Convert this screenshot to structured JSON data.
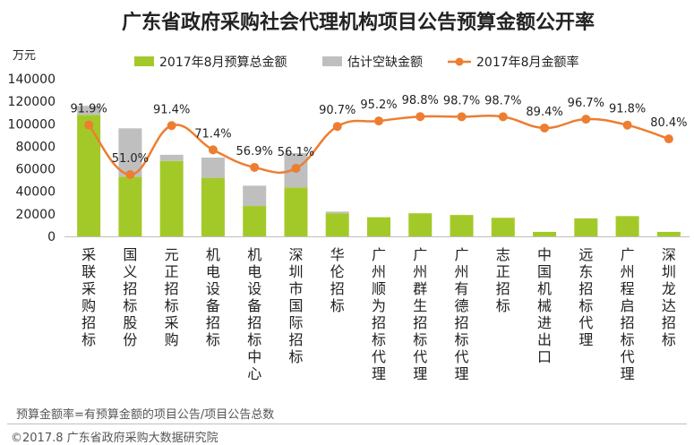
{
  "chart_data": {
    "type": "bar",
    "title": "广东省政府采购社会代理机构项目公告预算金额公开率",
    "ylabel": "万元",
    "ylim": [
      0,
      140000
    ],
    "yticks": [
      0,
      20000,
      40000,
      60000,
      80000,
      100000,
      120000,
      140000
    ],
    "y2lim": [
      0,
      1.3
    ],
    "legend_position": "top",
    "categories": [
      "采联采购招标",
      "国义招标股份",
      "元正招标采购",
      "机电设备招标",
      "机电设备招标中心",
      "深圳市国际招标",
      "华伦招标",
      "广州顺为招标代理",
      "广州群生招标代理",
      "广州有德招标代理",
      "志正招标",
      "中国机械进出口",
      "远东招标代理",
      "广州程启招标代理",
      "深圳龙达招标"
    ],
    "series": [
      {
        "name": "2017年8月预算总金额",
        "type": "bar",
        "color": "#a3c928",
        "values": [
          108000,
          53000,
          67000,
          52000,
          27000,
          43500,
          20500,
          17000,
          20500,
          19000,
          16500,
          4000,
          16000,
          18000,
          4000
        ]
      },
      {
        "name": "估计空缺金额",
        "type": "bar",
        "color": "#bfbfbf",
        "values": [
          8000,
          43000,
          5500,
          18000,
          18000,
          30500,
          1500,
          0,
          0,
          0,
          0,
          0,
          0,
          0,
          0
        ]
      },
      {
        "name": "2017年8月金额率",
        "type": "line",
        "color": "#ed7d31",
        "values": [
          0.919,
          0.51,
          0.914,
          0.714,
          0.569,
          0.561,
          0.907,
          0.952,
          0.988,
          0.987,
          0.987,
          0.894,
          0.967,
          0.918,
          0.804
        ]
      }
    ],
    "line_labels": [
      "91.9%",
      "51.0%",
      "91.4%",
      "71.4%",
      "56.9%",
      "56.1%",
      "90.7%",
      "95.2%",
      "98.8%",
      "98.7%",
      "98.7%",
      "89.4%",
      "96.7%",
      "91.8%",
      "80.4%"
    ]
  },
  "footnote": "预算金额率=有预算金额的项目公告/项目公告总数",
  "copyright": "©2017.8 广东省政府采购大数据研究院"
}
